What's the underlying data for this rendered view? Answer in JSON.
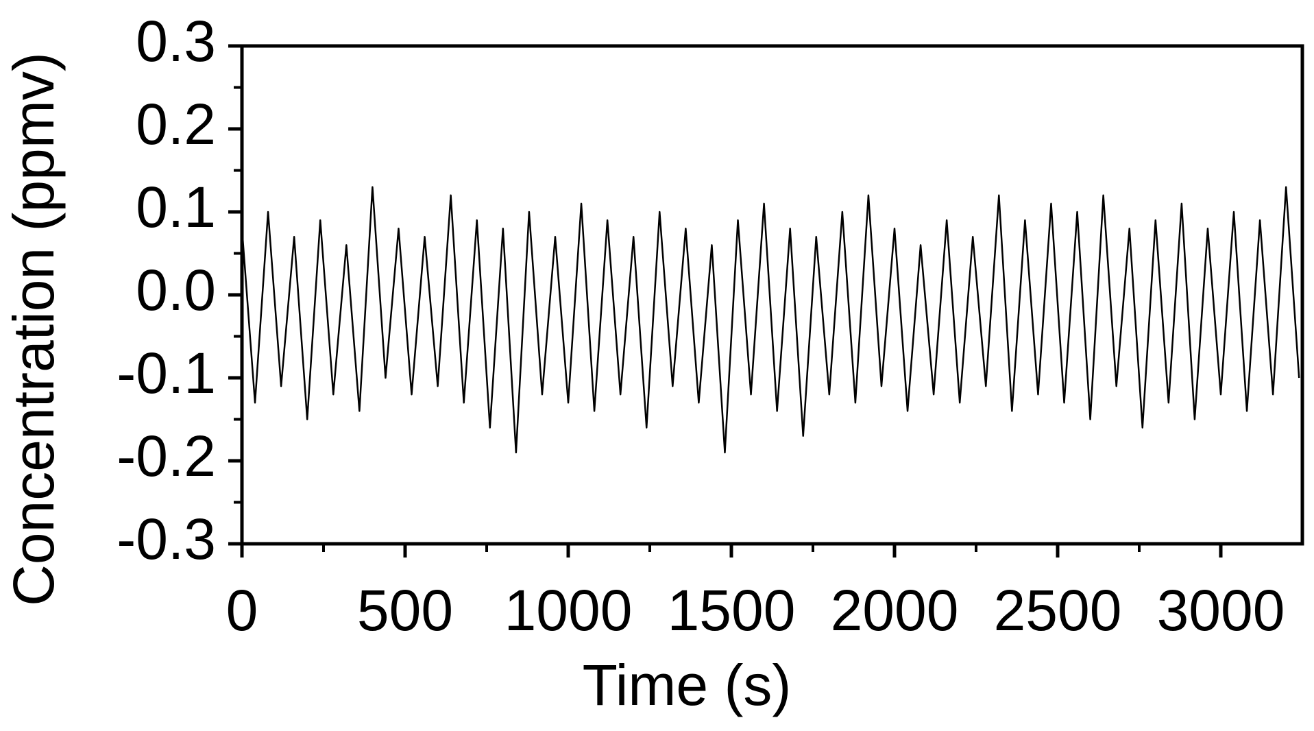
{
  "chart_data": {
    "type": "line",
    "xlabel": "Time (s)",
    "ylabel": "Concentration (ppmv)",
    "x": [
      0,
      40,
      80,
      120,
      160,
      200,
      240,
      280,
      320,
      360,
      400,
      440,
      480,
      520,
      560,
      600,
      640,
      680,
      720,
      760,
      800,
      840,
      880,
      920,
      960,
      1000,
      1040,
      1080,
      1120,
      1160,
      1200,
      1240,
      1280,
      1320,
      1360,
      1400,
      1440,
      1480,
      1520,
      1560,
      1600,
      1640,
      1680,
      1720,
      1760,
      1800,
      1840,
      1880,
      1920,
      1960,
      2000,
      2040,
      2080,
      2120,
      2160,
      2200,
      2240,
      2280,
      2320,
      2360,
      2400,
      2440,
      2480,
      2520,
      2560,
      2600,
      2640,
      2680,
      2720,
      2760,
      2800,
      2840,
      2880,
      2920,
      2960,
      3000,
      3040,
      3080,
      3120,
      3160,
      3200,
      3240
    ],
    "series": [
      {
        "name": "Concentration",
        "color": "#000000",
        "values": [
          0.08,
          -0.13,
          0.1,
          -0.11,
          0.07,
          -0.15,
          0.09,
          -0.12,
          0.06,
          -0.14,
          0.13,
          -0.1,
          0.08,
          -0.12,
          0.07,
          -0.11,
          0.12,
          -0.13,
          0.09,
          -0.16,
          0.08,
          -0.19,
          0.1,
          -0.12,
          0.07,
          -0.13,
          0.11,
          -0.14,
          0.09,
          -0.12,
          0.07,
          -0.16,
          0.1,
          -0.11,
          0.08,
          -0.13,
          0.06,
          -0.19,
          0.09,
          -0.12,
          0.11,
          -0.14,
          0.08,
          -0.17,
          0.07,
          -0.12,
          0.1,
          -0.13,
          0.12,
          -0.11,
          0.08,
          -0.14,
          0.06,
          -0.12,
          0.09,
          -0.13,
          0.07,
          -0.11,
          0.12,
          -0.14,
          0.09,
          -0.12,
          0.11,
          -0.13,
          0.1,
          -0.15,
          0.12,
          -0.11,
          0.08,
          -0.16,
          0.09,
          -0.13,
          0.11,
          -0.15,
          0.08,
          -0.12,
          0.1,
          -0.14,
          0.09,
          -0.12,
          0.13,
          -0.1
        ]
      }
    ],
    "xlim": [
      0,
      3250
    ],
    "xticks": [
      0,
      500,
      1000,
      1500,
      2000,
      2500,
      3000
    ],
    "ylim": [
      -0.3,
      0.3
    ],
    "yticks": [
      -0.3,
      -0.2,
      -0.1,
      {
        "value": 0,
        "label": "0.0"
      },
      0.1,
      0.2,
      0.3
    ],
    "grid": false
  }
}
